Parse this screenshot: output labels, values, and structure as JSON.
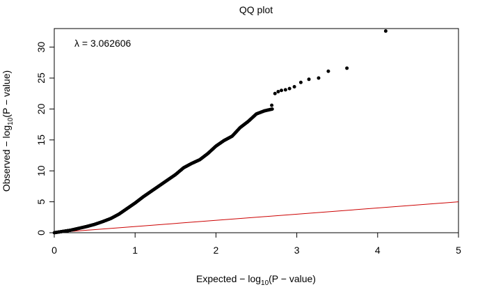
{
  "chart_data": {
    "type": "scatter",
    "title": "QQ plot",
    "annotation": "λ = 3.062606",
    "xlabel": {
      "prefix": "Expected − log",
      "sub": "10",
      "suffix": "(P − value)"
    },
    "ylabel": {
      "prefix": "Observed − log",
      "sub": "10",
      "suffix": "(P − value)"
    },
    "xlim": [
      0,
      5
    ],
    "ylim": [
      0,
      33
    ],
    "x_ticks": [
      0,
      1,
      2,
      3,
      4,
      5
    ],
    "y_ticks": [
      0,
      5,
      10,
      15,
      20,
      25,
      30
    ],
    "grid": false,
    "legend": "none",
    "reference_line": {
      "x": [
        0,
        5
      ],
      "y": [
        0,
        5
      ],
      "color": "#cc0000"
    },
    "point_color": "#000000",
    "curve": {
      "x": [
        0.0,
        0.1,
        0.2,
        0.3,
        0.4,
        0.5,
        0.6,
        0.7,
        0.8,
        0.9,
        1.0,
        1.1,
        1.2,
        1.3,
        1.4,
        1.5,
        1.6,
        1.7,
        1.8,
        1.9,
        2.0,
        2.1,
        2.2,
        2.3,
        2.4,
        2.5,
        2.6,
        2.7
      ],
      "y": [
        0.0,
        0.2,
        0.4,
        0.7,
        1.0,
        1.35,
        1.8,
        2.3,
        3.0,
        3.9,
        4.8,
        5.8,
        6.7,
        7.6,
        8.5,
        9.4,
        10.5,
        11.2,
        11.8,
        12.8,
        14.0,
        14.9,
        15.6,
        17.0,
        18.0,
        19.2,
        19.7,
        20.0
      ]
    },
    "tail_points": {
      "x": [
        2.69,
        2.73,
        2.77,
        2.81,
        2.86,
        2.91,
        2.97,
        3.05,
        3.15,
        3.27,
        3.39,
        3.62,
        4.1
      ],
      "y": [
        20.6,
        22.5,
        22.8,
        23.0,
        23.1,
        23.3,
        23.6,
        24.3,
        24.8,
        25.0,
        26.1,
        26.6,
        32.6
      ]
    }
  }
}
